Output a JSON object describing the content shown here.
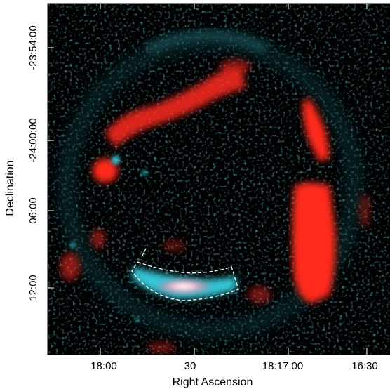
{
  "x_axis": {
    "label": "Right Ascension",
    "ticks": [
      "18:00",
      "30",
      "18:17:00",
      "16:30"
    ]
  },
  "y_axis": {
    "label": "Declination",
    "ticks": [
      "-23:54:00",
      "-24:00:00",
      "06:00",
      "12:00"
    ]
  },
  "colors": {
    "background": "#000000",
    "red_emission": "#ff2a1f",
    "cyan_emission": "#35c6d6",
    "region_outline": "#ffffff"
  }
}
